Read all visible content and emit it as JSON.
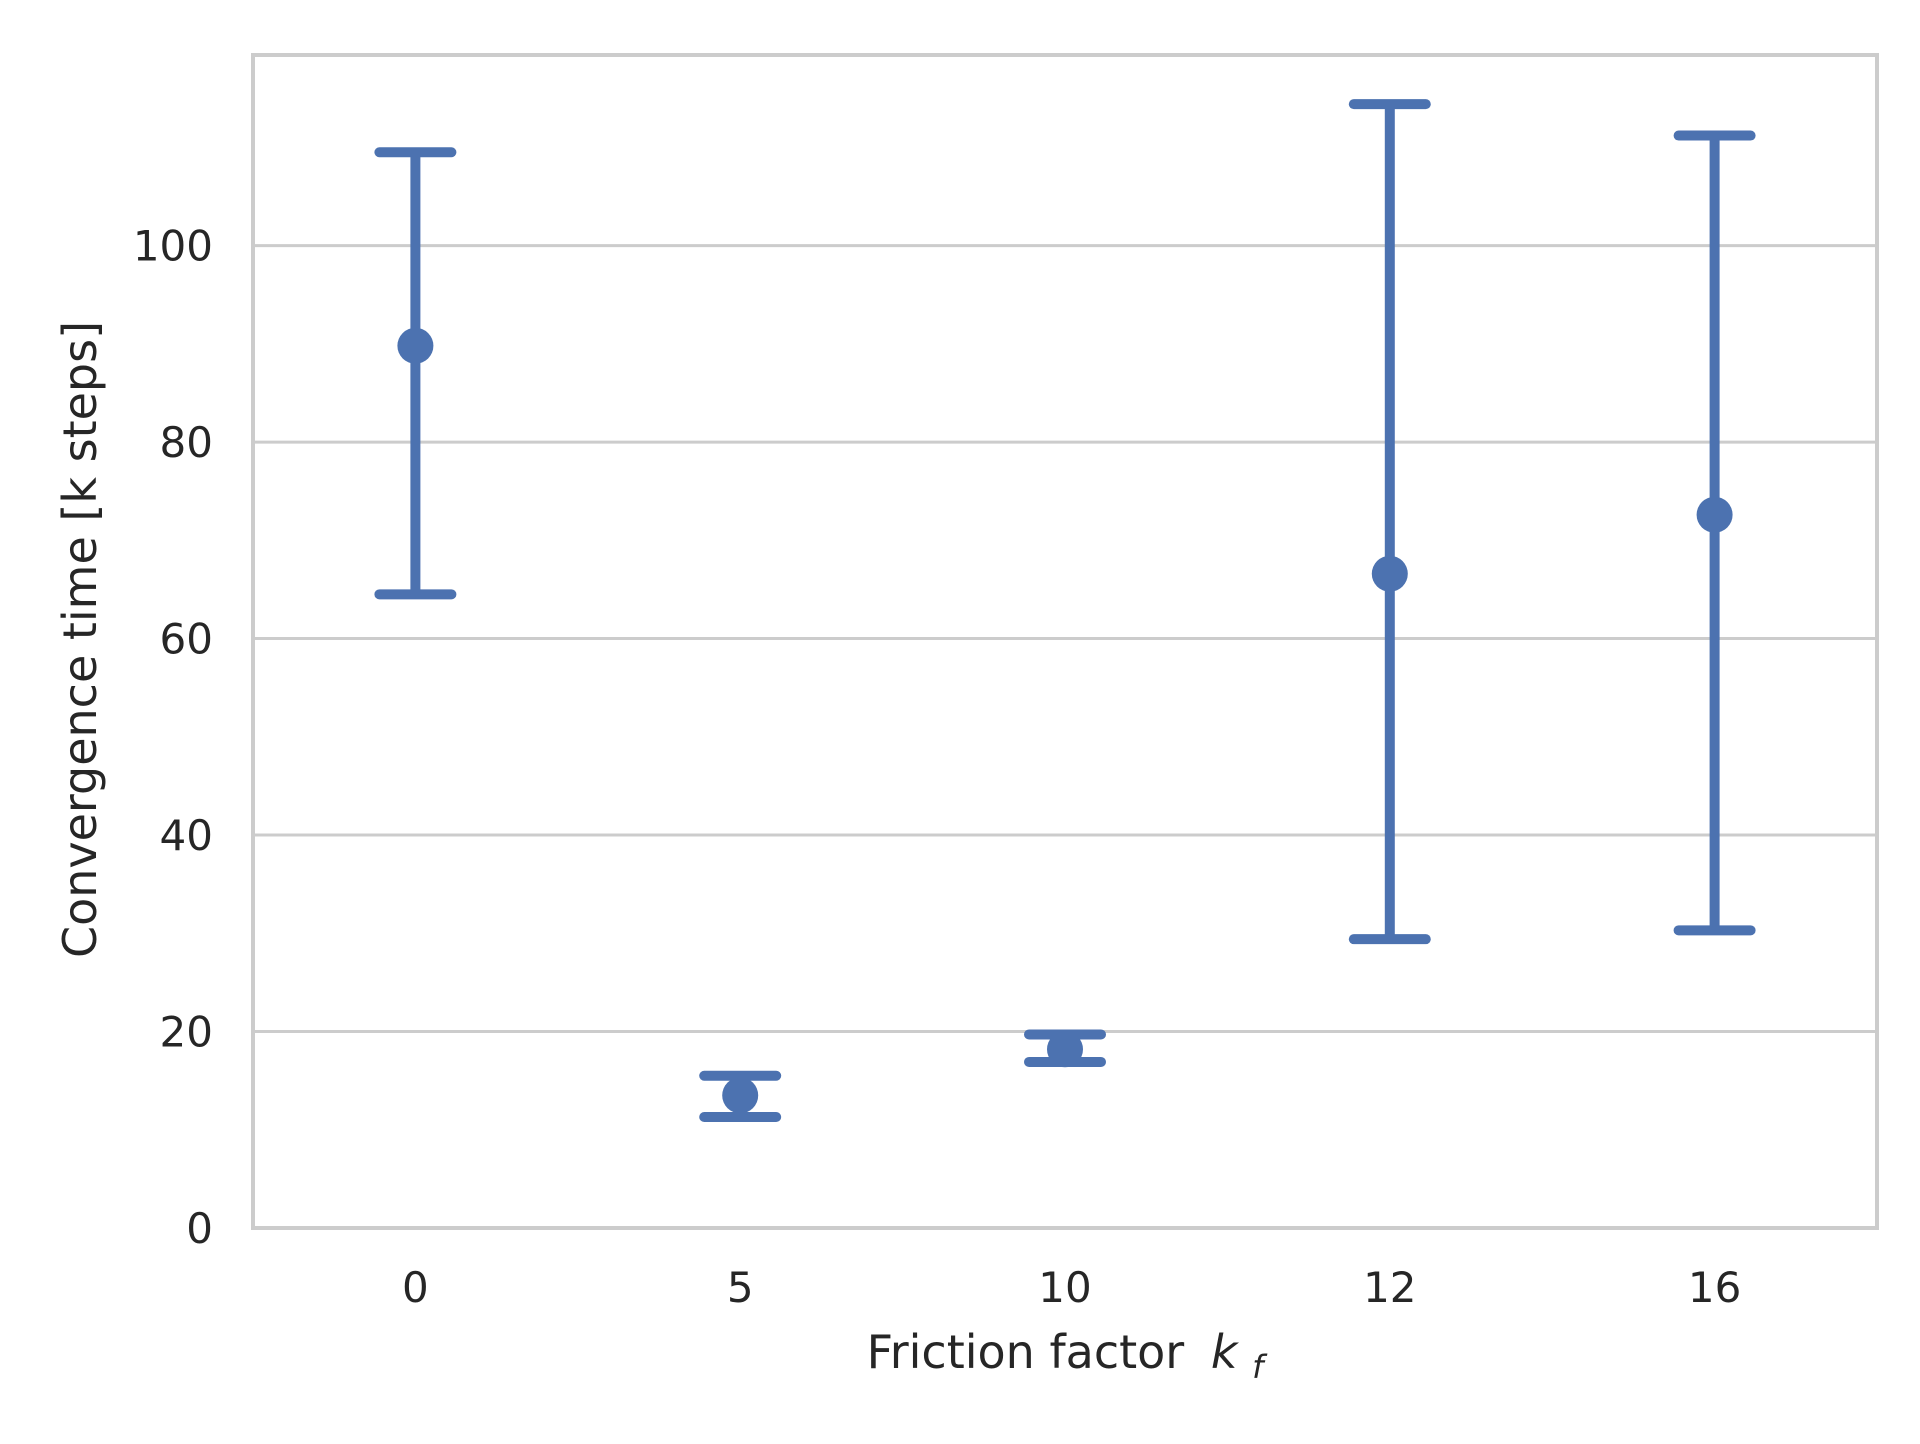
{
  "chart_data": {
    "type": "scatter",
    "style": "point estimates with error bars",
    "categories": [
      "0",
      "5",
      "10",
      "12",
      "16"
    ],
    "series": [
      {
        "values": [
          89.8,
          13.5,
          18.2,
          66.6,
          72.6
        ],
        "error_low": [
          64.5,
          11.3,
          16.9,
          29.4,
          30.3
        ],
        "error_high": [
          109.5,
          15.5,
          19.7,
          114.4,
          111.2
        ]
      }
    ],
    "xlabel": "Friction factor",
    "xlabel_math_base": "k",
    "xlabel_math_sub": "f",
    "ylabel": "Convergence time [k steps]",
    "ylim": [
      0,
      119.4
    ],
    "yticks": [
      "0",
      "20",
      "40",
      "60",
      "80",
      "100"
    ],
    "ytick_values": [
      0,
      20,
      40,
      60,
      80,
      100
    ],
    "grid": "horizontal",
    "legend": "none",
    "colors": {
      "series": "#4c72b0",
      "grid": "#cccccc",
      "frame": "#cccccc",
      "text": "#262626"
    }
  }
}
